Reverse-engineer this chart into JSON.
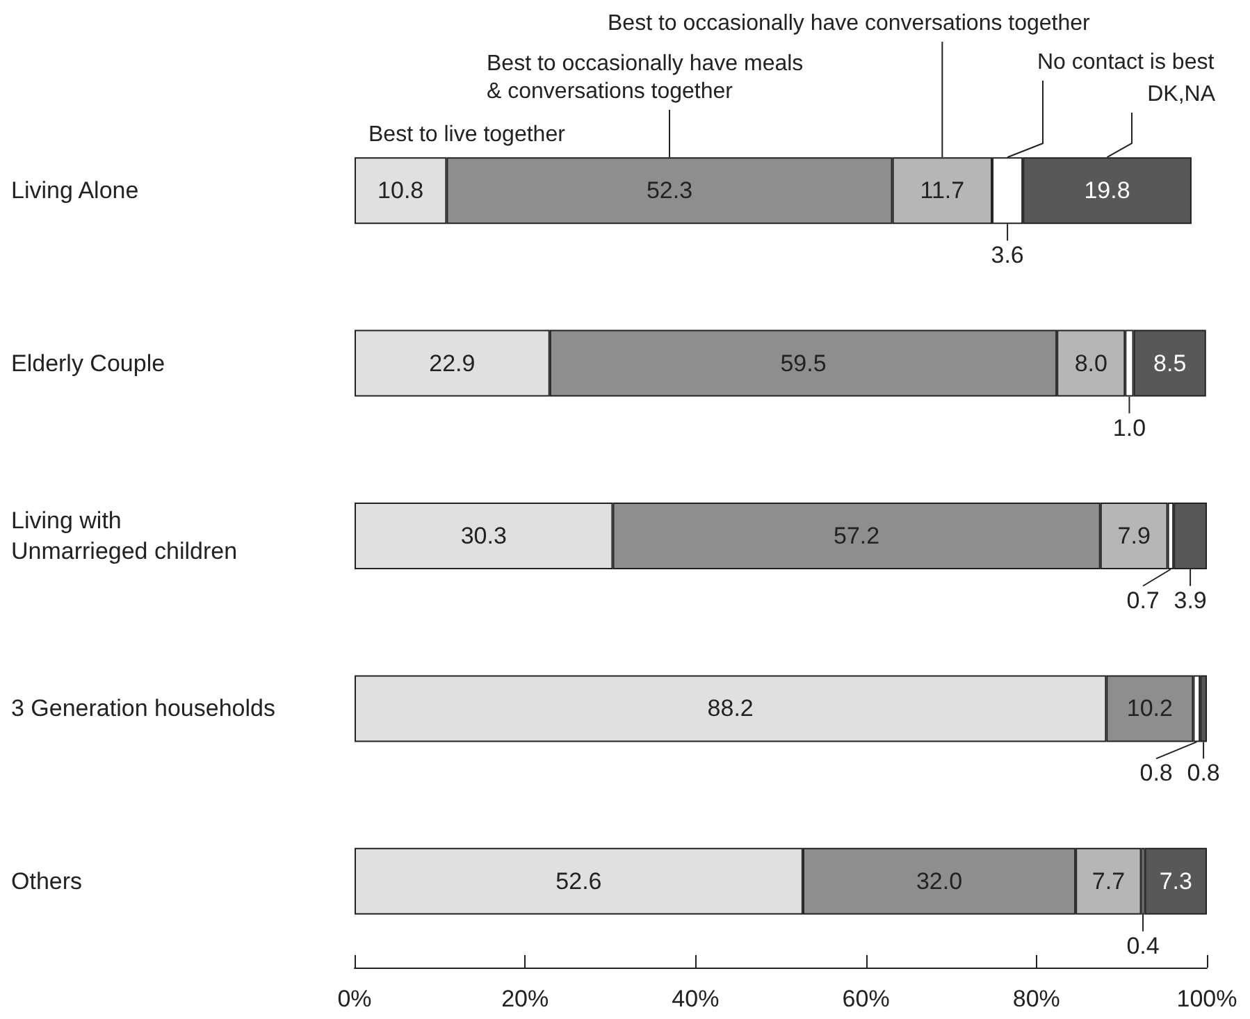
{
  "chart_data": {
    "type": "bar",
    "orientation": "horizontal",
    "stacked": true,
    "categories": [
      "Living Alone",
      "Elderly Couple",
      "Living with\nUnmarrieged children",
      "3 Generation households",
      "Others"
    ],
    "series": [
      {
        "name": "Best to live together",
        "color": "#e0e0e0",
        "values": [
          10.8,
          22.9,
          30.3,
          88.2,
          52.6
        ],
        "value_labels": [
          "10.8",
          "22.9",
          "30.3",
          "88.2",
          "52.6"
        ]
      },
      {
        "name": "Best to occasionally have meals\n& conversations together",
        "color": "#8e8e8e",
        "values": [
          52.3,
          59.5,
          57.2,
          10.2,
          32.0
        ],
        "value_labels": [
          "52.3",
          "59.5",
          "57.2",
          "10.2",
          "32.0"
        ]
      },
      {
        "name": "Best to occasionally have conversations together",
        "color": "#b6b6b6",
        "values": [
          11.7,
          8.0,
          7.9,
          null,
          7.7
        ],
        "value_labels": [
          "11.7",
          "8.0",
          "7.9",
          null,
          "7.7"
        ]
      },
      {
        "name": "No contact is best",
        "color": "#ffffff",
        "values": [
          3.6,
          1.0,
          0.7,
          0.8,
          0.4
        ],
        "value_labels": [
          "3.6",
          "1.0",
          "0.7",
          "0.8",
          "0.4"
        ]
      },
      {
        "name": "DK,NA",
        "color": "#585858",
        "values": [
          19.8,
          8.5,
          3.9,
          0.8,
          7.3
        ],
        "value_labels": [
          "19.8",
          "8.5",
          "3.9",
          "0.8",
          "7.3"
        ]
      }
    ],
    "xlim": [
      0,
      100
    ],
    "xticks": [
      {
        "value": 0,
        "label": "0%"
      },
      {
        "value": 20,
        "label": "20%"
      },
      {
        "value": 40,
        "label": "40%"
      },
      {
        "value": 60,
        "label": "60%"
      },
      {
        "value": 80,
        "label": "80%"
      },
      {
        "value": 100,
        "label": "100%"
      }
    ]
  }
}
